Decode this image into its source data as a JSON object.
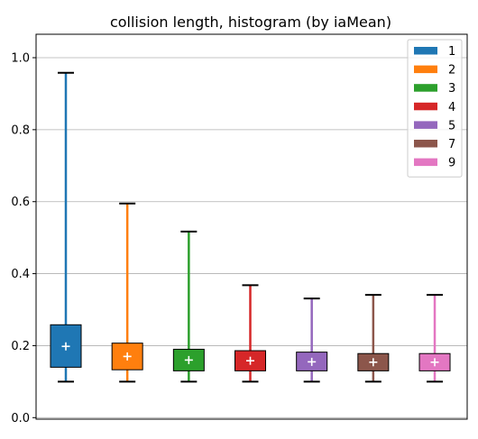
{
  "chart_data": {
    "type": "boxplot",
    "title": "collision length, histogram (by iaMean)",
    "xlabel": "",
    "ylabel": "",
    "ylim": [
      -0.005,
      1.06
    ],
    "yticks": [
      0.0,
      0.2,
      0.4,
      0.6,
      0.8,
      1.0
    ],
    "ytick_labels": [
      "0.0",
      "0.2",
      "0.4",
      "0.6",
      "0.8",
      "1.0"
    ],
    "grid": "horizontal",
    "legend_position": "top-right",
    "series": [
      {
        "name": "1",
        "color": "#1f77b4",
        "whisker_low": 0.1,
        "q1": 0.14,
        "q3": 0.258,
        "whisker_high": 0.958,
        "mean": 0.198
      },
      {
        "name": "2",
        "color": "#ff7f0e",
        "whisker_low": 0.1,
        "q1": 0.133,
        "q3": 0.207,
        "whisker_high": 0.595,
        "mean": 0.17
      },
      {
        "name": "3",
        "color": "#2ca02c",
        "whisker_low": 0.1,
        "q1": 0.13,
        "q3": 0.19,
        "whisker_high": 0.517,
        "mean": 0.16
      },
      {
        "name": "4",
        "color": "#d62728",
        "whisker_low": 0.1,
        "q1": 0.13,
        "q3": 0.186,
        "whisker_high": 0.368,
        "mean": 0.158
      },
      {
        "name": "5",
        "color": "#9467bd",
        "whisker_low": 0.1,
        "q1": 0.13,
        "q3": 0.182,
        "whisker_high": 0.331,
        "mean": 0.155
      },
      {
        "name": "7",
        "color": "#8c564b",
        "whisker_low": 0.1,
        "q1": 0.13,
        "q3": 0.178,
        "whisker_high": 0.341,
        "mean": 0.154
      },
      {
        "name": "9",
        "color": "#e377c2",
        "whisker_low": 0.1,
        "q1": 0.13,
        "q3": 0.178,
        "whisker_high": 0.341,
        "mean": 0.154
      }
    ]
  }
}
